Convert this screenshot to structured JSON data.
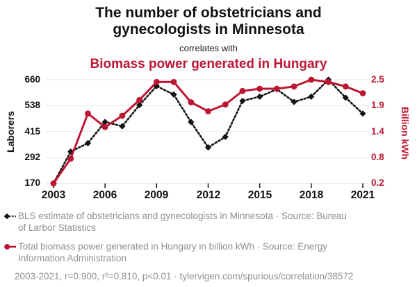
{
  "header": {
    "title": "The number of obstetricians and gynecologists in Minnesota",
    "connector": "correlates with",
    "subtitle": "Biomass power generated in Hungary"
  },
  "chart_data": {
    "type": "line",
    "x": [
      2003,
      2004,
      2005,
      2006,
      2007,
      2008,
      2009,
      2010,
      2011,
      2012,
      2013,
      2014,
      2015,
      2016,
      2017,
      2018,
      2019,
      2020,
      2021
    ],
    "x_tick_labels": [
      "2003",
      "2006",
      "2009",
      "2012",
      "2015",
      "2018",
      "2021"
    ],
    "series": [
      {
        "name": "BLS estimate of obstetricians and gynecologists in Minnesota",
        "axis": "left",
        "marker": "diamond",
        "line_style": "dashed",
        "color": "#131313",
        "values": [
          170,
          320,
          360,
          460,
          440,
          540,
          630,
          590,
          460,
          340,
          390,
          560,
          580,
          615,
          555,
          580,
          660,
          575,
          500
        ]
      },
      {
        "name": "Total biomass power generated in Hungary in billion kWh",
        "axis": "right",
        "marker": "circle",
        "line_style": "solid",
        "color": "#bd1632",
        "values": [
          0.2,
          0.75,
          1.75,
          1.45,
          1.7,
          2.05,
          2.45,
          2.45,
          2.0,
          1.8,
          1.95,
          2.25,
          2.3,
          2.3,
          2.35,
          2.5,
          2.45,
          2.35,
          2.2
        ]
      }
    ],
    "left_axis": {
      "label": "Laborers",
      "ticks": [
        "170",
        "292",
        "415",
        "538",
        "660"
      ],
      "tick_values": [
        170,
        292,
        415,
        538,
        660
      ],
      "min": 170,
      "max": 660
    },
    "right_axis": {
      "label": "Billion kWh",
      "ticks": [
        "0.2",
        "0.8",
        "1.4",
        "1.9",
        "2.5"
      ],
      "tick_values": [
        0.2,
        0.8,
        1.4,
        1.9,
        2.5
      ],
      "min": 0.2,
      "max": 2.5
    },
    "x_range": [
      2003,
      2021
    ],
    "grid": true,
    "legend_position": "bottom"
  },
  "legend": {
    "items": [
      {
        "marker": "black-diamond-dashed-line",
        "label": "BLS estimate of obstetricians and gynecologists in Minnesota · Source: Bureau of Larbor Statistics"
      },
      {
        "marker": "red-circle-solid-line",
        "label": "Total biomass power generated in Hungary in billion kWh · Source: Energy Information Administration"
      }
    ],
    "footnote": "2003-2021, r=0.900, r²=0.810, p<0.01 · tylervigen.com/spurious/correlation/38572"
  },
  "colors": {
    "accent_red": "#bd1632",
    "series_black": "#131313",
    "legend_gray": "#8f8f8f",
    "gridline": "#e9e9e9"
  }
}
